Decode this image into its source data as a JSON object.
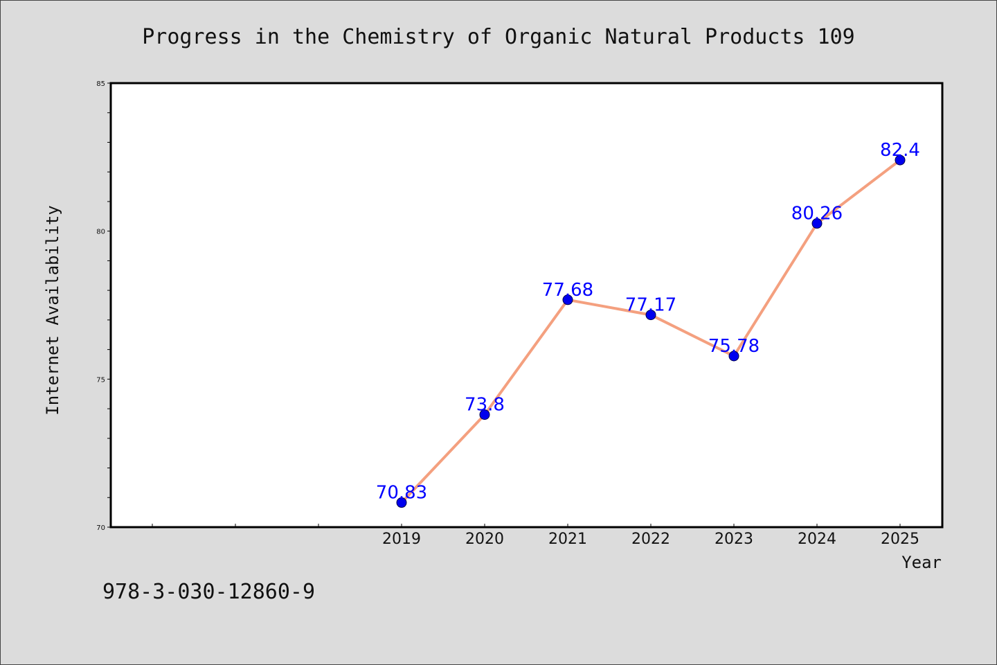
{
  "chart_data": {
    "type": "line",
    "title": "Progress in the Chemistry of Organic Natural Products 109",
    "xlabel": "Year",
    "ylabel": "Internet Availability",
    "categories": [
      "2019",
      "2020",
      "2021",
      "2022",
      "2023",
      "2024",
      "2025"
    ],
    "series": [
      {
        "values": [
          70.83,
          73.8,
          77.68,
          77.17,
          75.78,
          80.26,
          82.4
        ],
        "data_labels": [
          "70.83",
          "73.8",
          "77.68",
          "77.17",
          "75.78",
          "80.26",
          "82.4"
        ]
      }
    ],
    "ylim": [
      70,
      85
    ],
    "y_ticks": [
      "70",
      "75",
      "80",
      "85"
    ],
    "grid": false,
    "colors": {
      "line": "#f4a07f",
      "marker": "#0000ee",
      "label": "#0000ff",
      "background": "#dcdcdc",
      "plot_background": "#ffffff"
    }
  },
  "footnote": "978-3-030-12860-9"
}
